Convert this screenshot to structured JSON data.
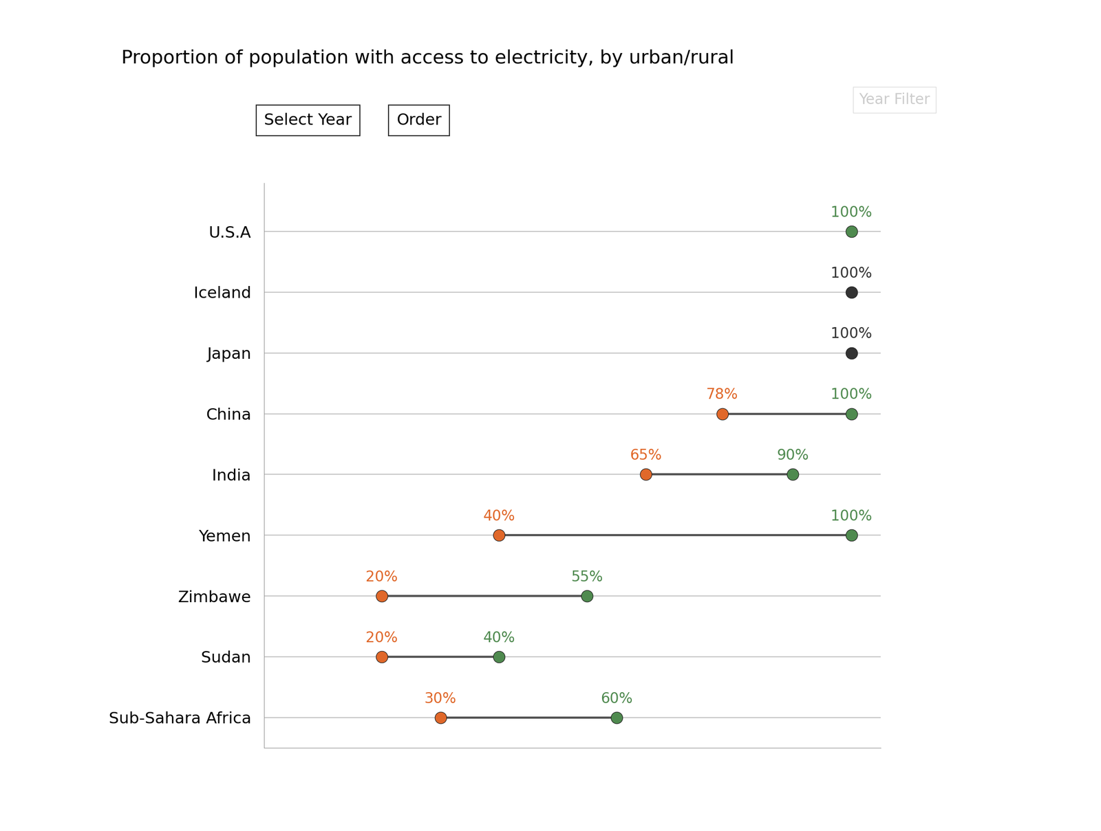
{
  "chart_data": {
    "type": "dumbbell",
    "title": "Proportion of population with access to electricity, by urban/rural",
    "annotations": [
      "Select Year",
      "Order",
      "Year Filter"
    ],
    "categories": [
      "U.S.A",
      "Iceland",
      "Japan",
      "China",
      "India",
      "Yemen",
      "Zimbawe",
      "Sudan",
      "Sub-Sahara Africa"
    ],
    "orientation": "horizontal",
    "xlim": [
      0,
      105
    ],
    "xticks": [],
    "tick_labels": "y",
    "grid": false,
    "data_labels": true,
    "series": [
      {
        "color": "#e0682a",
        "marker": "circle",
        "values": [
          null,
          null,
          null,
          78,
          65,
          40,
          20,
          20,
          30
        ],
        "value_labels": [
          null,
          null,
          null,
          "78%",
          "65%",
          "40%",
          "20%",
          "20%",
          "30%"
        ]
      },
      {
        "color": "#4f8a4f",
        "marker": "circle",
        "colors": [
          "#4f8a4f",
          "#333333",
          "#333333",
          "#4f8a4f",
          "#4f8a4f",
          "#4f8a4f",
          "#4f8a4f",
          "#4f8a4f",
          "#4f8a4f"
        ],
        "values": [
          100,
          100,
          100,
          100,
          90,
          100,
          55,
          40,
          60
        ],
        "value_labels": [
          "100%",
          "100%",
          "100%",
          "100%",
          "90%",
          "100%",
          "55%",
          "40%",
          "60%"
        ]
      }
    ]
  }
}
